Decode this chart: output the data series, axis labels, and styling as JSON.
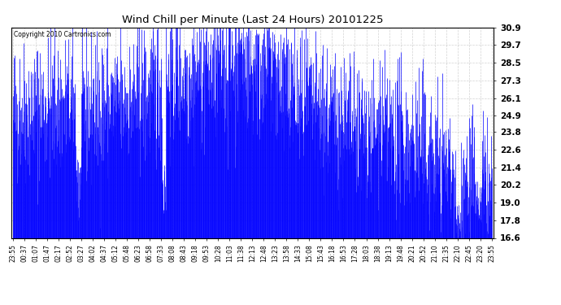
{
  "title": "Wind Chill per Minute (Last 24 Hours) 20101225",
  "copyright_text": "Copyright 2010 Cartronics.com",
  "bar_color": "#0000FF",
  "background_color": "#FFFFFF",
  "grid_color": "#C8C8C8",
  "ylim": [
    16.6,
    30.9
  ],
  "yticks": [
    16.6,
    17.8,
    19.0,
    20.2,
    21.4,
    22.6,
    23.8,
    24.9,
    26.1,
    27.3,
    28.5,
    29.7,
    30.9
  ],
  "xtick_labels": [
    "23:55",
    "00:37",
    "01:07",
    "01:47",
    "02:17",
    "02:52",
    "03:27",
    "04:02",
    "04:37",
    "05:12",
    "05:48",
    "06:23",
    "06:58",
    "07:33",
    "08:08",
    "08:43",
    "09:18",
    "09:53",
    "10:28",
    "11:03",
    "11:38",
    "12:13",
    "12:48",
    "13:23",
    "13:58",
    "14:33",
    "15:08",
    "15:43",
    "16:18",
    "16:53",
    "17:28",
    "18:03",
    "18:38",
    "19:13",
    "19:48",
    "20:21",
    "20:52",
    "21:10",
    "21:35",
    "22:10",
    "22:45",
    "23:20",
    "23:55"
  ],
  "num_points": 1440,
  "seed": 42
}
